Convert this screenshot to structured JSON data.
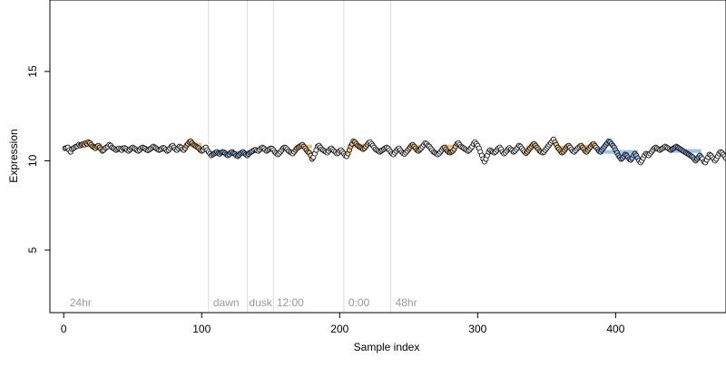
{
  "chart_data": {
    "type": "scatter",
    "title": "",
    "xlabel": "Sample index",
    "ylabel": "Expression",
    "xlim": [
      -10,
      480
    ],
    "ylim": [
      1.5,
      19
    ],
    "x_ticks": [
      0,
      100,
      200,
      300,
      400
    ],
    "x_tick_labels": [
      "0",
      "100",
      "200",
      "300",
      "400"
    ],
    "y_ticks": [
      5,
      10,
      15
    ],
    "y_tick_labels": [
      "5",
      "10",
      "15"
    ],
    "grid": false,
    "legend": "none",
    "colors": {
      "point_fill": "#ffffff",
      "point_stroke": "#000000",
      "orange_fill": "#f5c78c",
      "blue_fill": "#9ec1f0",
      "orange_band": "#e6b36a",
      "blue_band": "#8fb6e8",
      "divider": "#dddddd",
      "region_text": "#9a9a9a"
    },
    "divider_x": [
      105,
      133,
      152,
      203,
      237
    ],
    "region_labels": [
      {
        "text": "24hr",
        "x": 3
      },
      {
        "text": "dawn",
        "x": 107
      },
      {
        "text": "dusk",
        "x": 133
      },
      {
        "text": "12:00",
        "x": 153
      },
      {
        "text": "0:00",
        "x": 205
      },
      {
        "text": "48hr",
        "x": 239
      }
    ],
    "band_segments": [
      {
        "x_start": 12,
        "x_end": 28,
        "color": "orange",
        "level": 10.85
      },
      {
        "x_start": 88,
        "x_end": 100,
        "color": "orange",
        "level": 10.9
      },
      {
        "x_start": 108,
        "x_end": 136,
        "color": "blue",
        "level": 10.45
      },
      {
        "x_start": 168,
        "x_end": 180,
        "color": "orange",
        "level": 10.8
      },
      {
        "x_start": 206,
        "x_end": 220,
        "color": "orange",
        "level": 10.85
      },
      {
        "x_start": 250,
        "x_end": 258,
        "color": "orange",
        "level": 10.8
      },
      {
        "x_start": 276,
        "x_end": 285,
        "color": "orange",
        "level": 10.8
      },
      {
        "x_start": 335,
        "x_end": 345,
        "color": "orange",
        "level": 10.75
      },
      {
        "x_start": 356,
        "x_end": 366,
        "color": "orange",
        "level": 10.75
      },
      {
        "x_start": 375,
        "x_end": 385,
        "color": "orange",
        "level": 10.8
      },
      {
        "x_start": 387,
        "x_end": 416,
        "color": "blue",
        "level": 10.5
      },
      {
        "x_start": 440,
        "x_end": 462,
        "color": "blue",
        "level": 10.55
      }
    ],
    "series": [
      {
        "x_start": 1,
        "x_step": 1,
        "y": [
          10.7,
          10.72,
          10.75,
          10.6,
          10.5,
          10.65,
          10.7,
          10.75,
          10.8,
          10.82,
          10.9,
          10.85,
          10.9,
          10.95,
          10.9,
          11.0,
          10.95,
          11.05,
          11.0,
          10.9,
          10.8,
          10.75,
          10.7,
          10.8,
          10.85,
          10.75,
          10.65,
          10.55,
          10.6,
          10.7,
          10.75,
          10.8,
          10.9,
          10.85,
          10.75,
          10.7,
          10.65,
          10.6,
          10.65,
          10.7,
          10.65,
          10.6,
          10.7,
          10.72,
          10.68,
          10.6,
          10.55,
          10.62,
          10.7,
          10.75,
          10.7,
          10.65,
          10.6,
          10.55,
          10.6,
          10.7,
          10.75,
          10.72,
          10.68,
          10.62,
          10.58,
          10.62,
          10.68,
          10.74,
          10.8,
          10.75,
          10.7,
          10.65,
          10.6,
          10.62,
          10.68,
          10.74,
          10.7,
          10.62,
          10.55,
          10.6,
          10.7,
          10.8,
          10.85,
          10.75,
          10.65,
          10.6,
          10.7,
          10.8,
          10.75,
          10.65,
          10.6,
          10.7,
          10.85,
          10.95,
          11.05,
          11.1,
          11.0,
          10.9,
          10.85,
          10.8,
          10.75,
          10.7,
          10.6,
          10.55,
          10.6,
          10.7,
          10.75,
          10.6,
          10.5,
          10.4,
          10.3,
          10.35,
          10.4,
          10.45,
          10.5,
          10.42,
          10.38,
          10.45,
          10.5,
          10.48,
          10.42,
          10.35,
          10.3,
          10.35,
          10.45,
          10.5,
          10.42,
          10.38,
          10.3,
          10.25,
          10.32,
          10.4,
          10.45,
          10.5,
          10.42,
          10.35,
          10.3,
          10.38,
          10.45,
          10.5,
          10.55,
          10.6,
          10.62,
          10.58,
          10.55,
          10.62,
          10.7,
          10.75,
          10.7,
          10.62,
          10.55,
          10.6,
          10.65,
          10.7,
          10.68,
          10.6,
          10.5,
          10.42,
          10.35,
          10.4,
          10.5,
          10.6,
          10.7,
          10.75,
          10.72,
          10.65,
          10.55,
          10.5,
          10.45,
          10.4,
          10.5,
          10.6,
          10.7,
          10.75,
          10.8,
          10.85,
          10.9,
          10.8,
          10.7,
          10.6,
          10.5,
          10.45,
          10.3,
          10.1,
          10.2,
          10.4,
          10.6,
          10.8,
          10.85,
          10.75,
          10.65,
          10.6,
          10.55,
          10.5,
          10.45,
          10.55,
          10.65,
          10.7,
          10.62,
          10.55,
          10.48,
          10.4,
          10.45,
          10.55,
          10.6,
          10.5,
          10.4,
          10.3,
          10.25,
          10.4,
          10.6,
          10.8,
          10.95,
          11.1,
          11.05,
          10.95,
          10.85,
          10.8,
          10.75,
          10.7,
          10.65,
          10.7,
          10.8,
          10.9,
          11.0,
          11.05,
          10.95,
          10.85,
          10.75,
          10.65,
          10.6,
          10.55,
          10.5,
          10.55,
          10.6,
          10.65,
          10.7,
          10.75,
          10.7,
          10.6,
          10.5,
          10.4,
          10.35,
          10.45,
          10.55,
          10.65,
          10.7,
          10.6,
          10.5,
          10.42,
          10.38,
          10.45,
          10.55,
          10.65,
          10.75,
          10.85,
          10.9,
          10.8,
          10.7,
          10.6,
          10.55,
          10.62,
          10.7,
          10.8,
          10.9,
          11.0,
          10.95,
          10.85,
          10.8,
          10.7,
          10.6,
          10.5,
          10.45,
          10.4,
          10.35,
          10.4,
          10.5,
          10.6,
          10.7,
          10.75,
          10.65,
          10.55,
          10.48,
          10.45,
          10.5,
          10.55,
          10.65,
          10.8,
          10.95,
          11.0,
          10.9,
          10.8,
          10.75,
          10.7,
          10.65,
          10.6,
          10.55,
          10.6,
          10.7,
          10.8,
          10.95,
          11.05,
          10.95,
          10.85,
          10.7,
          10.5,
          10.3,
          10.1,
          9.95,
          10.1,
          10.3,
          10.5,
          10.6,
          10.55,
          10.5,
          10.45,
          10.5,
          10.6,
          10.7,
          10.75,
          10.65,
          10.5,
          10.4,
          10.45,
          10.55,
          10.65,
          10.72,
          10.65,
          10.58,
          10.5,
          10.55,
          10.65,
          10.75,
          10.85,
          10.8,
          10.7,
          10.6,
          10.5,
          10.42,
          10.5,
          10.6,
          10.7,
          10.8,
          10.9,
          10.95,
          10.85,
          10.75,
          10.65,
          10.55,
          10.5,
          10.45,
          10.5,
          10.6,
          10.7,
          10.8,
          10.9,
          11.0,
          11.1,
          11.2,
          11.05,
          10.9,
          10.75,
          10.65,
          10.55,
          10.45,
          10.5,
          10.6,
          10.7,
          10.8,
          10.85,
          10.75,
          10.65,
          10.55,
          10.5,
          10.58,
          10.66,
          10.74,
          10.8,
          10.85,
          10.75,
          10.65,
          10.55,
          10.5,
          10.6,
          10.7,
          10.8,
          10.9,
          10.95,
          10.85,
          10.75,
          10.65,
          10.55,
          10.5,
          10.6,
          10.7,
          10.8,
          10.9,
          11.0,
          11.1,
          11.05,
          10.95,
          10.85,
          10.75,
          10.6,
          10.45,
          10.3,
          10.2,
          10.1,
          10.15,
          10.25,
          10.35,
          10.3,
          10.2,
          10.1,
          10.05,
          10.15,
          10.3,
          10.4,
          10.3,
          10.15,
          10.0,
          9.9,
          10.0,
          10.15,
          10.3,
          10.4,
          10.35,
          10.3,
          10.4,
          10.5,
          10.6,
          10.7,
          10.75,
          10.7,
          10.65,
          10.6,
          10.65,
          10.7,
          10.75,
          10.8,
          10.75,
          10.7,
          10.65,
          10.6,
          10.65,
          10.7,
          10.75,
          10.8,
          10.75,
          10.7,
          10.65,
          10.6,
          10.55,
          10.5,
          10.45,
          10.4,
          10.35,
          10.3,
          10.25,
          10.2,
          10.1,
          10.0,
          10.1,
          10.2,
          10.3,
          10.2,
          10.1,
          9.95,
          9.9,
          10.05,
          10.2,
          10.35,
          10.3,
          10.2,
          10.1,
          10.0,
          10.1,
          10.25,
          10.4,
          10.5,
          10.45,
          10.35,
          10.25,
          10.15
        ]
      }
    ]
  }
}
